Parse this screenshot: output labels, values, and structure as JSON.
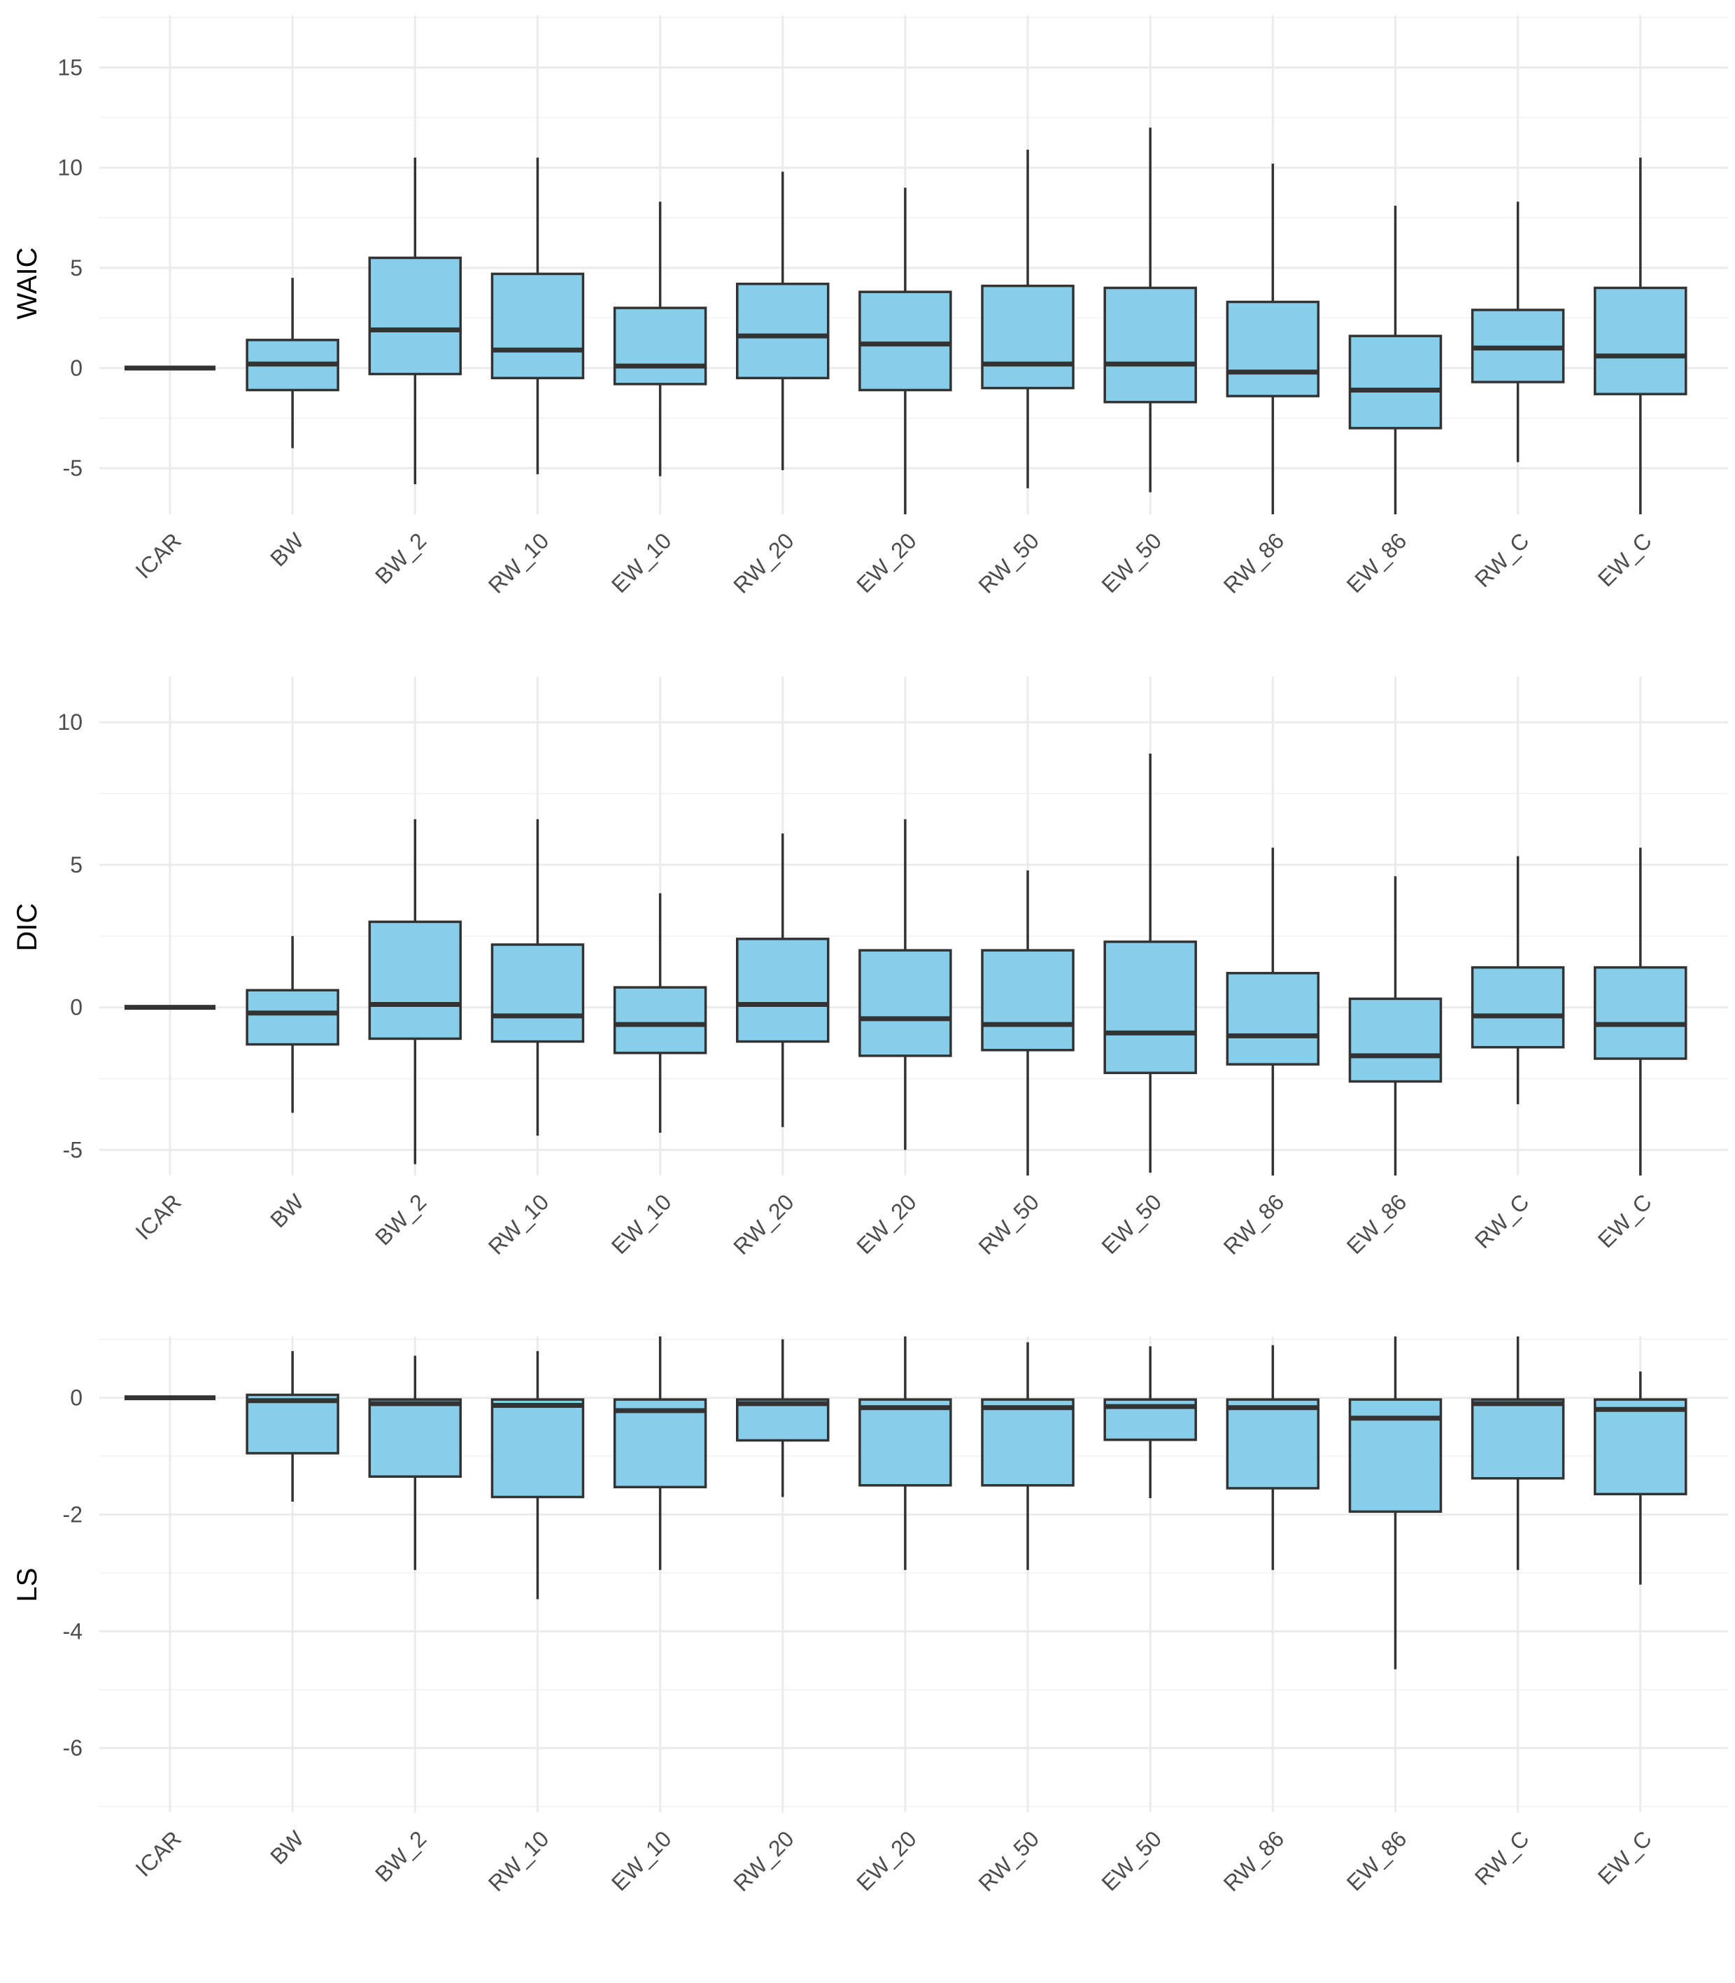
{
  "categories": [
    "ICAR",
    "BW",
    "BW_2",
    "RW_10",
    "EW_10",
    "RW_20",
    "EW_20",
    "RW_50",
    "EW_50",
    "RW_86",
    "EW_86",
    "RW_C",
    "EW_C"
  ],
  "colors": {
    "box_fill": "#87CEEB",
    "box_stroke": "#333333",
    "grid": "#EBEBEB"
  },
  "chart_data": [
    {
      "type": "boxplot",
      "ylabel": "WAIC",
      "ylim": [
        -7.3,
        17.6
      ],
      "yticks": [
        -5,
        0,
        5,
        10,
        15
      ],
      "ytick_labels": [
        "-5",
        "0",
        "5",
        "10",
        "15"
      ],
      "grid": true,
      "boxes": [
        {
          "category": "ICAR",
          "whisker_low": 0,
          "q1": 0,
          "median": 0,
          "q3": 0,
          "whisker_high": 0
        },
        {
          "category": "BW",
          "whisker_low": -4.0,
          "q1": -1.1,
          "median": 0.2,
          "q3": 1.4,
          "whisker_high": 4.5
        },
        {
          "category": "BW_2",
          "whisker_low": -5.8,
          "q1": -0.3,
          "median": 1.9,
          "q3": 5.5,
          "whisker_high": 10.5
        },
        {
          "category": "RW_10",
          "whisker_low": -5.3,
          "q1": -0.5,
          "median": 0.9,
          "q3": 4.7,
          "whisker_high": 10.5
        },
        {
          "category": "EW_10",
          "whisker_low": -5.4,
          "q1": -0.8,
          "median": 0.1,
          "q3": 3.0,
          "whisker_high": 8.3
        },
        {
          "category": "RW_20",
          "whisker_low": -5.1,
          "q1": -0.5,
          "median": 1.6,
          "q3": 4.2,
          "whisker_high": 9.8
        },
        {
          "category": "EW_20",
          "whisker_low": -7.3,
          "q1": -1.1,
          "median": 1.2,
          "q3": 3.8,
          "whisker_high": 9.0
        },
        {
          "category": "RW_50",
          "whisker_low": -6.0,
          "q1": -1.0,
          "median": 0.2,
          "q3": 4.1,
          "whisker_high": 10.9
        },
        {
          "category": "EW_50",
          "whisker_low": -6.2,
          "q1": -1.7,
          "median": 0.2,
          "q3": 4.0,
          "whisker_high": 12.0
        },
        {
          "category": "RW_86",
          "whisker_low": -7.3,
          "q1": -1.4,
          "median": -0.2,
          "q3": 3.3,
          "whisker_high": 10.2
        },
        {
          "category": "EW_86",
          "whisker_low": -7.3,
          "q1": -3.0,
          "median": -1.1,
          "q3": 1.6,
          "whisker_high": 8.1
        },
        {
          "category": "RW_C",
          "whisker_low": -4.7,
          "q1": -0.7,
          "median": 1.0,
          "q3": 2.9,
          "whisker_high": 8.3
        },
        {
          "category": "EW_C",
          "whisker_low": -7.3,
          "q1": -1.3,
          "median": 0.6,
          "q3": 4.0,
          "whisker_high": 10.5
        }
      ]
    },
    {
      "type": "boxplot",
      "ylabel": "DIC",
      "ylim": [
        -5.9,
        11.6
      ],
      "yticks": [
        -5,
        0,
        5,
        10
      ],
      "ytick_labels": [
        "-5",
        "0",
        "5",
        "10"
      ],
      "grid": true,
      "boxes": [
        {
          "category": "ICAR",
          "whisker_low": 0,
          "q1": 0,
          "median": 0,
          "q3": 0,
          "whisker_high": 0
        },
        {
          "category": "BW",
          "whisker_low": -3.7,
          "q1": -1.3,
          "median": -0.2,
          "q3": 0.6,
          "whisker_high": 2.5
        },
        {
          "category": "BW_2",
          "whisker_low": -5.5,
          "q1": -1.1,
          "median": 0.1,
          "q3": 3.0,
          "whisker_high": 6.6
        },
        {
          "category": "RW_10",
          "whisker_low": -4.5,
          "q1": -1.2,
          "median": -0.3,
          "q3": 2.2,
          "whisker_high": 6.6
        },
        {
          "category": "EW_10",
          "whisker_low": -4.4,
          "q1": -1.6,
          "median": -0.6,
          "q3": 0.7,
          "whisker_high": 4.0
        },
        {
          "category": "RW_20",
          "whisker_low": -4.2,
          "q1": -1.2,
          "median": 0.1,
          "q3": 2.4,
          "whisker_high": 6.1
        },
        {
          "category": "EW_20",
          "whisker_low": -5.0,
          "q1": -1.7,
          "median": -0.4,
          "q3": 2.0,
          "whisker_high": 6.6
        },
        {
          "category": "RW_50",
          "whisker_low": -5.9,
          "q1": -1.5,
          "median": -0.6,
          "q3": 2.0,
          "whisker_high": 4.8
        },
        {
          "category": "EW_50",
          "whisker_low": -5.8,
          "q1": -2.3,
          "median": -0.9,
          "q3": 2.3,
          "whisker_high": 8.9
        },
        {
          "category": "RW_86",
          "whisker_low": -5.9,
          "q1": -2.0,
          "median": -1.0,
          "q3": 1.2,
          "whisker_high": 5.6
        },
        {
          "category": "EW_86",
          "whisker_low": -5.9,
          "q1": -2.6,
          "median": -1.7,
          "q3": 0.3,
          "whisker_high": 4.6
        },
        {
          "category": "RW_C",
          "whisker_low": -3.4,
          "q1": -1.4,
          "median": -0.3,
          "q3": 1.4,
          "whisker_high": 5.3
        },
        {
          "category": "EW_C",
          "whisker_low": -5.9,
          "q1": -1.8,
          "median": -0.6,
          "q3": 1.4,
          "whisker_high": 5.6
        }
      ]
    },
    {
      "type": "boxplot",
      "ylabel": "LS",
      "ylim": [
        -7.1,
        1.05
      ],
      "yticks": [
        -6,
        -4,
        -2,
        0
      ],
      "ytick_labels": [
        "-6",
        "-4",
        "-2",
        "0"
      ],
      "grid": true,
      "boxes": [
        {
          "category": "ICAR",
          "whisker_low": 0,
          "q1": 0,
          "median": 0,
          "q3": 0,
          "whisker_high": 0
        },
        {
          "category": "BW",
          "whisker_low": -1.78,
          "q1": -0.95,
          "median": -0.05,
          "q3": 0.05,
          "whisker_high": 0.8
        },
        {
          "category": "BW_2",
          "whisker_low": -2.95,
          "q1": -1.35,
          "median": -0.1,
          "q3": -0.03,
          "whisker_high": 0.72
        },
        {
          "category": "RW_10",
          "whisker_low": -3.45,
          "q1": -1.7,
          "median": -0.13,
          "q3": -0.03,
          "whisker_high": 0.8
        },
        {
          "category": "EW_10",
          "whisker_low": -2.95,
          "q1": -1.53,
          "median": -0.22,
          "q3": -0.03,
          "whisker_high": 1.05
        },
        {
          "category": "RW_20",
          "whisker_low": -1.7,
          "q1": -0.73,
          "median": -0.1,
          "q3": -0.03,
          "whisker_high": 1.0
        },
        {
          "category": "EW_20",
          "whisker_low": -2.95,
          "q1": -1.5,
          "median": -0.17,
          "q3": -0.03,
          "whisker_high": 1.05
        },
        {
          "category": "RW_50",
          "whisker_low": -2.95,
          "q1": -1.5,
          "median": -0.17,
          "q3": -0.03,
          "whisker_high": 0.95
        },
        {
          "category": "EW_50",
          "whisker_low": -1.72,
          "q1": -0.72,
          "median": -0.15,
          "q3": -0.03,
          "whisker_high": 0.88
        },
        {
          "category": "RW_86",
          "whisker_low": -2.95,
          "q1": -1.55,
          "median": -0.17,
          "q3": -0.03,
          "whisker_high": 0.9
        },
        {
          "category": "EW_86",
          "whisker_low": -4.65,
          "q1": -1.95,
          "median": -0.35,
          "q3": -0.03,
          "whisker_high": 1.05
        },
        {
          "category": "RW_C",
          "whisker_low": -2.95,
          "q1": -1.38,
          "median": -0.1,
          "q3": -0.03,
          "whisker_high": 1.05
        },
        {
          "category": "EW_C",
          "whisker_low": -3.2,
          "q1": -1.65,
          "median": -0.2,
          "q3": -0.03,
          "whisker_high": 0.45
        }
      ]
    }
  ]
}
